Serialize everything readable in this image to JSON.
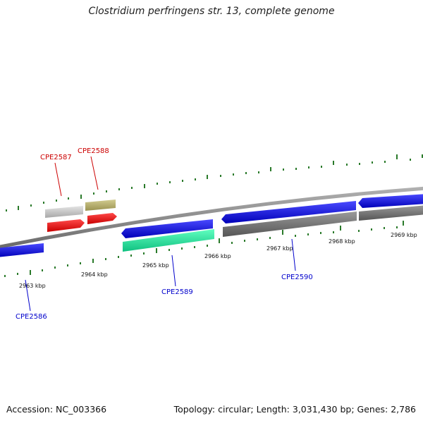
{
  "title": "Clostridium perfringens str. 13, complete genome",
  "accession": "Accession: NC_003366",
  "stats": "Topology: circular; Length: 3,031,430 bp; Genes: 2,786",
  "ticks": [
    "2963 kbp",
    "2964 kbp",
    "2965 kbp",
    "2966 kbp",
    "2967 kbp",
    "2968 kbp",
    "2969 kbp"
  ],
  "genes": {
    "CPE2586": "CPE2586",
    "CPE2587": "CPE2587",
    "CPE2588": "CPE2588",
    "CPE2589": "CPE2589",
    "CPE2590": "CPE2590"
  },
  "colors": {
    "blue_label": "#0000cc",
    "red_label": "#cc0000",
    "backbone": "#888888",
    "cds_blue": "#1515e0",
    "cds_red": "#ee0000",
    "cds_teal": "#20e8a0",
    "cds_grey": "#777777",
    "cds_light": "#c8c8c8",
    "cds_olive": "#b8b070",
    "tick_green": "#2a7a2a"
  }
}
